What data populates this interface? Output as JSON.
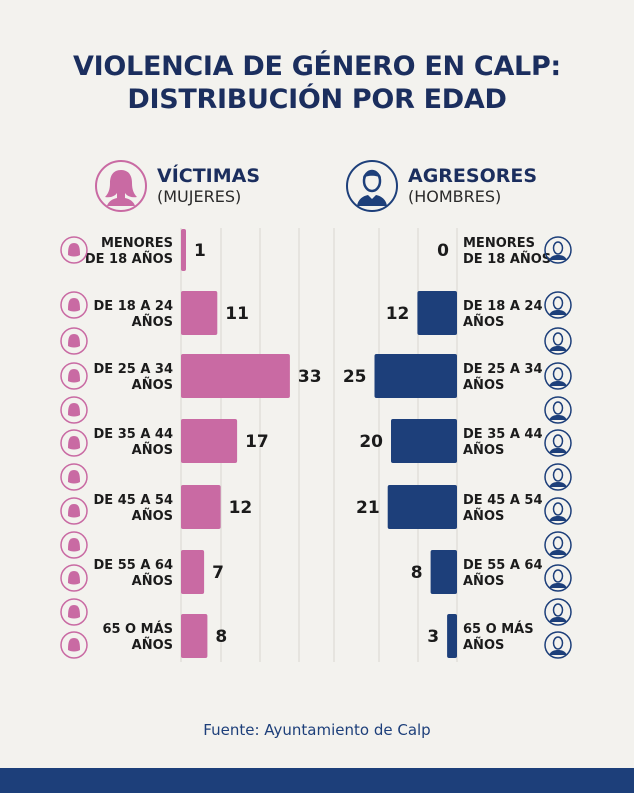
{
  "title_line1": "VIOLENCIA DE GÉNERO EN CALP:",
  "title_line2": "DISTRIBUCIÓN POR EDAD",
  "colors": {
    "victims": "#c96aa3",
    "aggressors": "#1d3f7a",
    "title": "#1b2e5e",
    "background": "#f3f2ee"
  },
  "chart_data": {
    "type": "bar",
    "orientation": "horizontal-butterfly",
    "categories": [
      [
        "MENORES",
        "DE 18 AÑOS"
      ],
      [
        "DE 18 A 24",
        "AÑOS"
      ],
      [
        "DE 25 A 34",
        "AÑOS"
      ],
      [
        "DE 35 A 44",
        "AÑOS"
      ],
      [
        "DE 45 A 54",
        "AÑOS"
      ],
      [
        "DE 55 A 64",
        "AÑOS"
      ],
      [
        "65 O MÁS",
        "AÑOS"
      ]
    ],
    "series": [
      {
        "name": "VÍCTIMAS",
        "subtitle": "(MUJERES)",
        "icon": "woman-icon",
        "values": [
          1,
          11,
          33,
          17,
          12,
          7,
          8
        ]
      },
      {
        "name": "AGRESORES",
        "subtitle": "(HOMBRES)",
        "icon": "man-icon",
        "values": [
          0,
          12,
          25,
          20,
          21,
          8,
          3
        ]
      }
    ],
    "grid": true
  },
  "source": "Fuente: Ayuntamiento de Calp"
}
